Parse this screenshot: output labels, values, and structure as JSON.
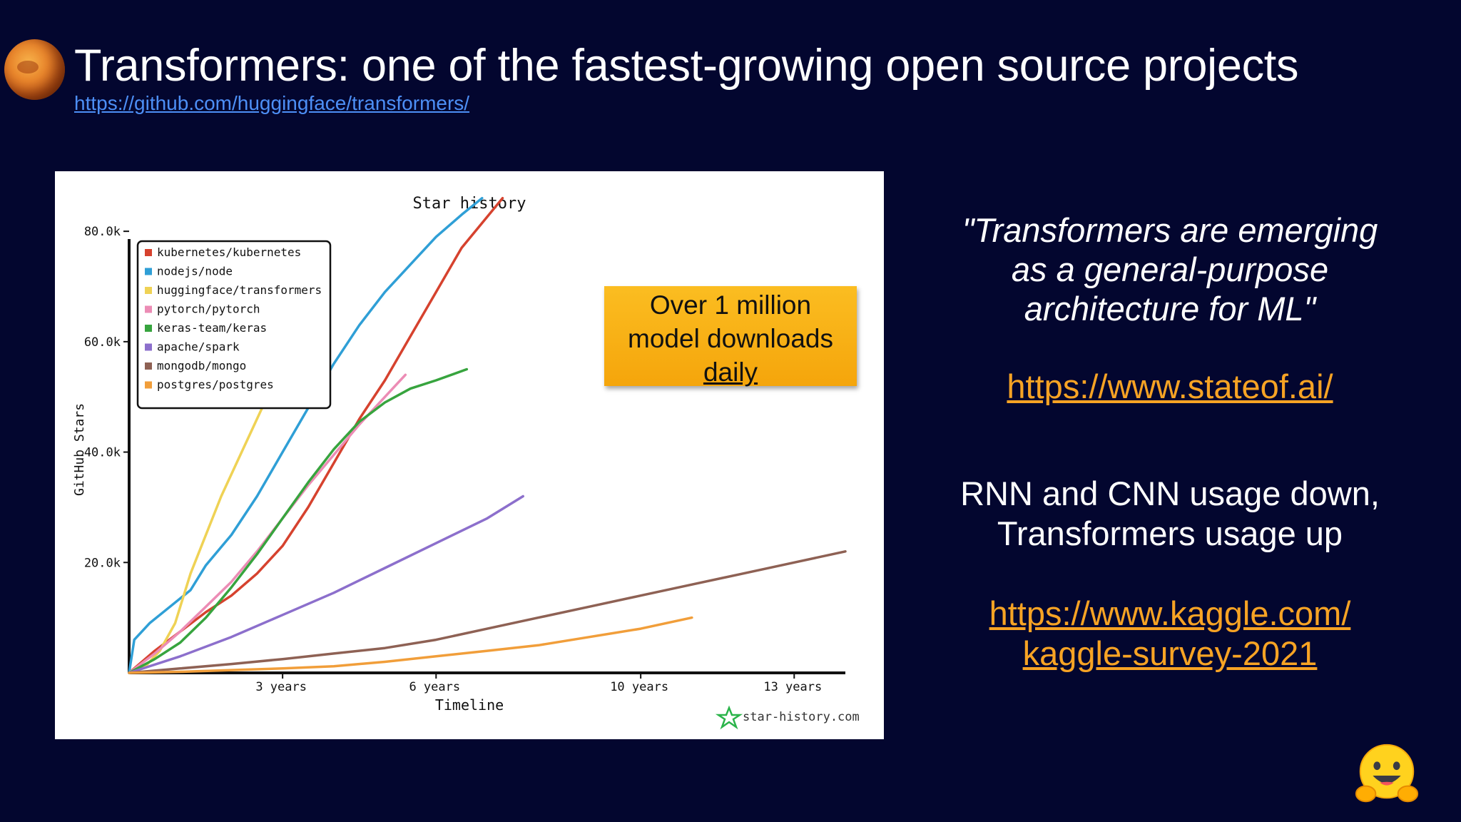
{
  "slide": {
    "title": "Transformers: one of the fastest-growing open source projects",
    "repo_link": "https://github.com/huggingface/transformers/",
    "callout": {
      "line1": "Over 1 million",
      "line2": "model downloads",
      "line3": "daily"
    },
    "quote": {
      "line1": "\"Transformers are emerging",
      "line2": "as a general-purpose",
      "line3": "architecture for ML\""
    },
    "stateof_link": "https://www.stateof.ai/",
    "usage": {
      "line1": "RNN and CNN usage down,",
      "line2": "Transformers usage up"
    },
    "kaggle_link": {
      "line1": "https://www.kaggle.com/",
      "line2": "kaggle-survey-2021"
    },
    "colors": {
      "background": "#03062f",
      "link_blue": "#4d8ff6",
      "link_orange": "#f7a324",
      "callout": "#f8b21a"
    },
    "icons": {
      "planet": "planet-icon",
      "star_history_logo": "star-icon",
      "mascot": "hugging-face-emoji-icon"
    }
  },
  "chart_data": {
    "type": "line",
    "title": "Star history",
    "xlabel": "Timeline",
    "ylabel": "GitHub Stars",
    "xlim": [
      0,
      14
    ],
    "ylim": [
      0,
      87000
    ],
    "x_ticks": [
      3,
      6,
      10,
      13
    ],
    "x_tick_labels": [
      "3 years",
      "6 years",
      "10 years",
      "13 years"
    ],
    "y_ticks": [
      20000,
      40000,
      60000,
      80000
    ],
    "y_tick_labels": [
      "20.0k",
      "40.0k",
      "60.0k",
      "80.0k"
    ],
    "legend_position": "top-left",
    "watermark": "star-history.com",
    "series": [
      {
        "name": "kubernetes/kubernetes",
        "color": "#d6422e",
        "x": [
          0,
          0.5,
          1,
          1.5,
          2,
          2.5,
          3,
          3.5,
          4,
          4.5,
          5,
          5.5,
          6,
          6.5,
          7.3
        ],
        "y": [
          0,
          4000,
          7500,
          11000,
          14000,
          18000,
          23000,
          30000,
          38000,
          46000,
          53000,
          61000,
          69000,
          77000,
          86000
        ]
      },
      {
        "name": "nodejs/node",
        "color": "#2f9fd6",
        "x": [
          0,
          0.1,
          0.4,
          0.8,
          1.2,
          1.5,
          2,
          2.5,
          3,
          3.5,
          4,
          4.5,
          5,
          5.5,
          6,
          6.5,
          6.9
        ],
        "y": [
          0,
          6000,
          9000,
          12000,
          15000,
          19500,
          25000,
          32000,
          40000,
          48000,
          56000,
          63000,
          69000,
          74000,
          79000,
          83000,
          86000
        ]
      },
      {
        "name": "huggingface/transformers",
        "color": "#efd255",
        "x": [
          0,
          0.3,
          0.6,
          0.9,
          1.2,
          1.5,
          1.8,
          2.1,
          2.4,
          2.7,
          3,
          3.2
        ],
        "y": [
          0,
          1000,
          4000,
          9000,
          18000,
          25000,
          32000,
          38000,
          44000,
          50000,
          56000,
          60000
        ]
      },
      {
        "name": "pytorch/pytorch",
        "color": "#ec8cb5",
        "x": [
          0,
          0.5,
          1,
          1.5,
          2,
          2.5,
          3,
          3.5,
          4,
          4.5,
          5,
          5.4
        ],
        "y": [
          0,
          3500,
          7500,
          12000,
          16500,
          22000,
          28000,
          34000,
          39500,
          45000,
          50000,
          54000
        ]
      },
      {
        "name": "keras-team/keras",
        "color": "#37a43e",
        "x": [
          0,
          0.5,
          1,
          1.5,
          2,
          2.5,
          3,
          3.5,
          4,
          4.5,
          5,
          5.5,
          6,
          6.6
        ],
        "y": [
          0,
          2500,
          5500,
          10000,
          15500,
          21500,
          28000,
          34500,
          40500,
          45500,
          49000,
          51500,
          53000,
          55000
        ]
      },
      {
        "name": "apache/spark",
        "color": "#8c6fcc",
        "x": [
          0,
          1,
          2,
          3,
          4,
          5,
          6,
          7,
          7.7
        ],
        "y": [
          0,
          3000,
          6500,
          10500,
          14500,
          19000,
          23500,
          28000,
          32000
        ]
      },
      {
        "name": "mongodb/mongo",
        "color": "#8e6154",
        "x": [
          0,
          1,
          2,
          3,
          4,
          5,
          6,
          7,
          8,
          9,
          10,
          11,
          12,
          13,
          14
        ],
        "y": [
          0,
          800,
          1600,
          2500,
          3500,
          4500,
          6000,
          8000,
          10000,
          12000,
          14000,
          16000,
          18000,
          20000,
          22000
        ]
      },
      {
        "name": "postgres/postgres",
        "color": "#f19e3a",
        "x": [
          0,
          1,
          2,
          3,
          4,
          5,
          6,
          7,
          8,
          9,
          10,
          11
        ],
        "y": [
          0,
          200,
          500,
          800,
          1200,
          2000,
          3000,
          4000,
          5000,
          6500,
          8000,
          10000
        ]
      }
    ]
  }
}
